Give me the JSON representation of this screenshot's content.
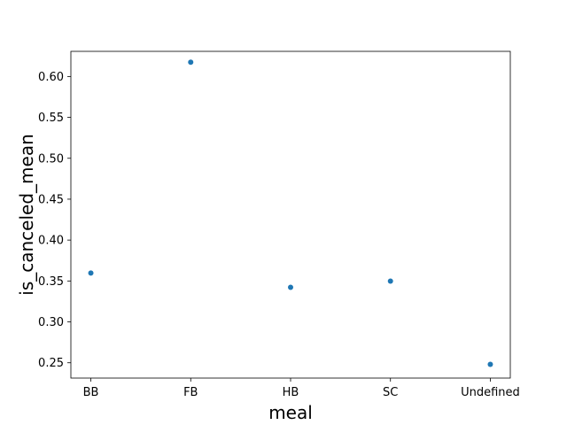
{
  "chart_data": {
    "type": "scatter",
    "title": "",
    "xlabel": "meal",
    "ylabel": "is_canceled_mean",
    "categories": [
      "BB",
      "FB",
      "HB",
      "SC",
      "Undefined"
    ],
    "series": [
      {
        "values": [
          0.3597,
          0.6175,
          0.3423,
          0.3498,
          0.2481
        ],
        "color": "#1f77b4"
      }
    ],
    "ylim": [
      0.2313,
      0.6307
    ],
    "yticks": [
      0.25,
      0.3,
      0.35,
      0.4,
      0.45,
      0.5,
      0.55,
      0.6
    ],
    "ytick_labels": [
      "0.25",
      "0.30",
      "0.35",
      "0.40",
      "0.45",
      "0.50",
      "0.55",
      "0.60"
    ],
    "grid": false,
    "legend": "none"
  }
}
